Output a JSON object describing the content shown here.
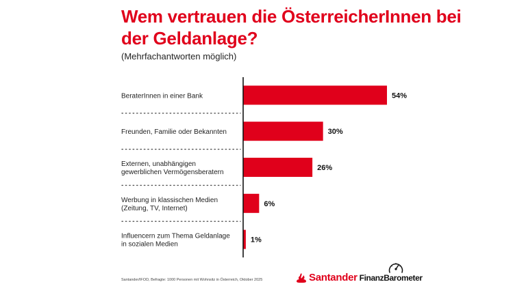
{
  "header": {
    "title": "Wem vertrauen die ÖsterreicherInnen bei der Geldanlage?",
    "subtitle": "(Mehrfachantworten möglich)"
  },
  "footer": {
    "source": "Santander/IFOD, Befragte: 1000 Personen mit Wohnsitz in Österreich, Oktober 2025",
    "brand": "Santander",
    "brand_product": "FinanzBarometer"
  },
  "colors": {
    "accent": "#e0001b",
    "text": "#222222",
    "axis": "#111111"
  },
  "icons": {
    "logo": "santander-flame-icon",
    "gauge": "speedometer-icon"
  },
  "chart_data": {
    "type": "bar",
    "orientation": "horizontal",
    "categories": [
      [
        "BeraterInnen in einer Bank"
      ],
      [
        "Freunden, Familie oder Bekannten"
      ],
      [
        "Externen, unabhängigen",
        "gewerblichen Vermögensberatern"
      ],
      [
        "Werbung in klassischen Medien",
        "(Zeitung, TV, Internet)"
      ],
      [
        "Influencern zum Thema Geldanlage",
        "in sozialen Medien"
      ]
    ],
    "values": [
      54,
      30,
      26,
      6,
      1
    ],
    "value_labels": [
      "54%",
      "30%",
      "26%",
      "6%",
      "1%"
    ],
    "unit": "%",
    "xlim": [
      0,
      54
    ],
    "grid": false,
    "separators": "dotted"
  }
}
